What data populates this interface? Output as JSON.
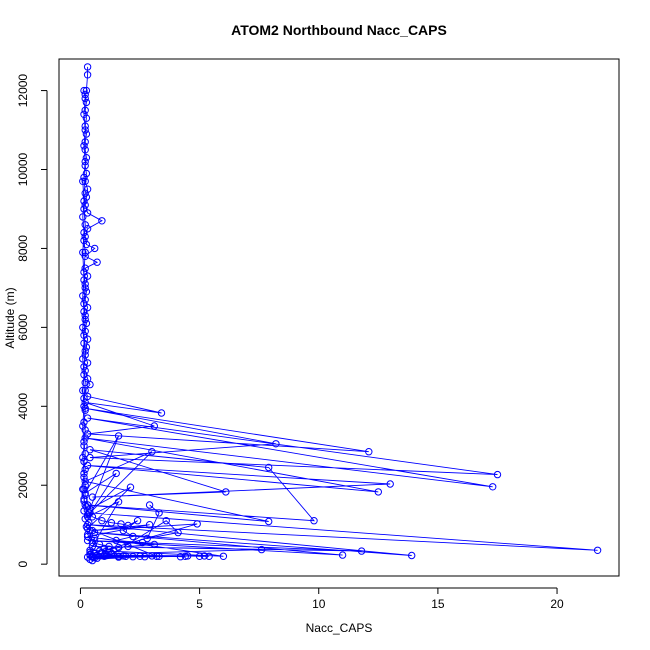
{
  "chart_data": {
    "type": "line",
    "title": "ATOM2 Northbound Nacc_CAPS",
    "xlabel": "Nacc_CAPS",
    "ylabel": "Altitude (m)",
    "xlim": [
      -0.9,
      22.6
    ],
    "ylim": [
      -300,
      12800
    ],
    "xticks": [
      0,
      5,
      10,
      15,
      20
    ],
    "yticks": [
      0,
      2000,
      4000,
      6000,
      8000,
      10000,
      12000
    ],
    "grid": false,
    "legend": "none",
    "series": [
      {
        "color": "#0000ff",
        "marker": "open-circle",
        "points": [
          [
            0.3,
            12600
          ],
          [
            0.3,
            12400
          ],
          [
            0.25,
            12000
          ],
          [
            0.2,
            11900
          ],
          [
            0.25,
            11700
          ],
          [
            0.2,
            11500
          ],
          [
            0.25,
            11300
          ],
          [
            0.2,
            11100
          ],
          [
            0.25,
            10900
          ],
          [
            0.2,
            10700
          ],
          [
            0.2,
            10500
          ],
          [
            0.25,
            10300
          ],
          [
            0.2,
            10100
          ],
          [
            0.25,
            9900
          ],
          [
            0.2,
            9700
          ],
          [
            0.3,
            9500
          ],
          [
            0.25,
            9300
          ],
          [
            0.2,
            9100
          ],
          [
            0.3,
            8900
          ],
          [
            0.9,
            8700
          ],
          [
            0.3,
            8500
          ],
          [
            0.2,
            8300
          ],
          [
            0.25,
            8100
          ],
          [
            0.6,
            8000
          ],
          [
            0.2,
            7800
          ],
          [
            0.7,
            7650
          ],
          [
            0.2,
            7500
          ],
          [
            0.3,
            7300
          ],
          [
            0.2,
            7100
          ],
          [
            0.25,
            6900
          ],
          [
            0.2,
            6700
          ],
          [
            0.3,
            6500
          ],
          [
            0.2,
            6300
          ],
          [
            0.25,
            6100
          ],
          [
            0.2,
            5900
          ],
          [
            0.3,
            5700
          ],
          [
            0.25,
            5500
          ],
          [
            0.2,
            5300
          ],
          [
            0.3,
            5100
          ],
          [
            0.2,
            4900
          ],
          [
            0.3,
            4700
          ],
          [
            0.4,
            4550
          ],
          [
            0.2,
            4400
          ],
          [
            0.3,
            4250
          ],
          [
            3.4,
            3830
          ],
          [
            0.2,
            4100
          ],
          [
            3.1,
            3500
          ],
          [
            0.3,
            3300
          ],
          [
            12.1,
            2850
          ],
          [
            0.2,
            3950
          ],
          [
            8.2,
            3050
          ],
          [
            0.4,
            2700
          ],
          [
            17.5,
            2270
          ],
          [
            0.3,
            3700
          ],
          [
            17.3,
            1960
          ],
          [
            0.2,
            3200
          ],
          [
            12.5,
            1830
          ],
          [
            0.3,
            2500
          ],
          [
            13.0,
            2030
          ],
          [
            0.5,
            1700
          ],
          [
            6.1,
            1830
          ],
          [
            0.4,
            2900
          ],
          [
            7.9,
            2450
          ],
          [
            9.8,
            1100
          ],
          [
            0.3,
            1500
          ],
          [
            7.9,
            1080
          ],
          [
            0.2,
            2100
          ],
          [
            3.0,
            2850
          ],
          [
            0.4,
            1300
          ],
          [
            21.7,
            350
          ],
          [
            0.3,
            1000
          ],
          [
            13.9,
            220
          ],
          [
            0.6,
            800
          ],
          [
            11.0,
            230
          ],
          [
            0.3,
            600
          ],
          [
            11.8,
            330
          ],
          [
            0.5,
            450
          ],
          [
            7.6,
            370
          ],
          [
            0.4,
            250
          ],
          [
            4.9,
            1020
          ],
          [
            0.5,
            850
          ],
          [
            2.9,
            1000
          ],
          [
            0.3,
            700
          ],
          [
            6.0,
            200
          ],
          [
            0.4,
            350
          ],
          [
            1.6,
            1580
          ],
          [
            0.3,
            1200
          ],
          [
            1.5,
            2300
          ],
          [
            0.2,
            1800
          ],
          [
            1.6,
            3250
          ],
          [
            0.4,
            1400
          ],
          [
            2.1,
            1950
          ],
          [
            0.3,
            900
          ],
          [
            3.2,
            200
          ],
          [
            0.5,
            180
          ],
          [
            4.4,
            200
          ],
          [
            0.6,
            160
          ],
          [
            2.7,
            190
          ],
          [
            0.4,
            120
          ],
          [
            1.6,
            180
          ],
          [
            0.5,
            200
          ],
          [
            5.2,
            210
          ],
          [
            0.7,
            230
          ],
          [
            1.9,
            200
          ],
          [
            0.4,
            300
          ]
        ]
      },
      {
        "color": "#0000ff",
        "marker": "open-circle",
        "points": [
          [
            0.15,
            12000
          ],
          [
            0.2,
            11800
          ],
          [
            0.15,
            11400
          ],
          [
            0.2,
            11000
          ],
          [
            0.15,
            10600
          ],
          [
            0.2,
            10200
          ],
          [
            0.15,
            9800
          ],
          [
            0.2,
            9400
          ],
          [
            0.15,
            9000
          ],
          [
            0.2,
            8600
          ],
          [
            0.15,
            8200
          ],
          [
            0.2,
            7900
          ],
          [
            0.15,
            7400
          ],
          [
            0.2,
            7000
          ],
          [
            0.15,
            6600
          ],
          [
            0.2,
            6200
          ],
          [
            0.15,
            5800
          ],
          [
            0.2,
            5400
          ],
          [
            0.15,
            5000
          ],
          [
            0.2,
            4600
          ],
          [
            0.15,
            4200
          ],
          [
            0.2,
            3900
          ],
          [
            0.15,
            3600
          ],
          [
            0.2,
            3400
          ],
          [
            0.15,
            3100
          ],
          [
            0.2,
            2800
          ],
          [
            0.15,
            2600
          ],
          [
            0.2,
            2400
          ],
          [
            0.15,
            2200
          ],
          [
            0.2,
            2000
          ],
          [
            0.15,
            1900
          ],
          [
            0.2,
            1750
          ],
          [
            0.15,
            1600
          ],
          [
            0.25,
            1450
          ],
          [
            0.15,
            1350
          ],
          [
            0.3,
            1250
          ],
          [
            0.2,
            1150
          ],
          [
            0.35,
            1050
          ],
          [
            0.25,
            950
          ],
          [
            0.4,
            850
          ],
          [
            0.3,
            750
          ],
          [
            0.6,
            650
          ],
          [
            0.5,
            550
          ],
          [
            0.8,
            500
          ],
          [
            1.2,
            450
          ],
          [
            1.0,
            400
          ],
          [
            1.4,
            350
          ],
          [
            0.9,
            300
          ],
          [
            1.3,
            260
          ],
          [
            1.1,
            220
          ],
          [
            1.6,
            200
          ],
          [
            1.8,
            210
          ],
          [
            2.2,
            190
          ],
          [
            2.5,
            200
          ],
          [
            3.0,
            210
          ],
          [
            3.3,
            200
          ],
          [
            4.2,
            190
          ],
          [
            4.5,
            210
          ],
          [
            5.0,
            200
          ],
          [
            5.4,
            200
          ]
        ]
      },
      {
        "color": "#0000ff",
        "marker": "open-circle",
        "points": [
          [
            0.1,
            9700
          ],
          [
            0.15,
            9200
          ],
          [
            0.1,
            8800
          ],
          [
            0.15,
            8400
          ],
          [
            0.1,
            7900
          ],
          [
            0.15,
            7200
          ],
          [
            0.1,
            6800
          ],
          [
            0.15,
            6400
          ],
          [
            0.1,
            6000
          ],
          [
            0.15,
            5600
          ],
          [
            0.1,
            5200
          ],
          [
            0.15,
            4800
          ],
          [
            0.1,
            4400
          ],
          [
            0.15,
            4000
          ],
          [
            0.1,
            3500
          ],
          [
            0.15,
            3000
          ],
          [
            0.1,
            2700
          ],
          [
            0.15,
            2300
          ],
          [
            0.1,
            1900
          ],
          [
            0.15,
            1650
          ],
          [
            0.2,
            1500
          ],
          [
            0.35,
            1300
          ],
          [
            0.5,
            1200
          ],
          [
            0.9,
            1100
          ],
          [
            1.3,
            1050
          ],
          [
            1.7,
            1020
          ],
          [
            2.0,
            980
          ],
          [
            2.4,
            1100
          ],
          [
            1.8,
            850
          ],
          [
            2.2,
            700
          ],
          [
            1.5,
            600
          ],
          [
            2.6,
            550
          ],
          [
            3.1,
            500
          ],
          [
            2.0,
            450
          ],
          [
            1.6,
            420
          ],
          [
            1.2,
            380
          ],
          [
            0.8,
            330
          ],
          [
            0.6,
            280
          ],
          [
            0.4,
            230
          ],
          [
            0.3,
            180
          ],
          [
            0.5,
            90
          ],
          [
            0.7,
            150
          ],
          [
            1.0,
            200
          ],
          [
            1.3,
            250
          ],
          [
            3.6,
            1100
          ],
          [
            4.1,
            800
          ],
          [
            2.8,
            650
          ],
          [
            3.3,
            1300
          ],
          [
            2.9,
            1500
          ]
        ]
      }
    ]
  }
}
